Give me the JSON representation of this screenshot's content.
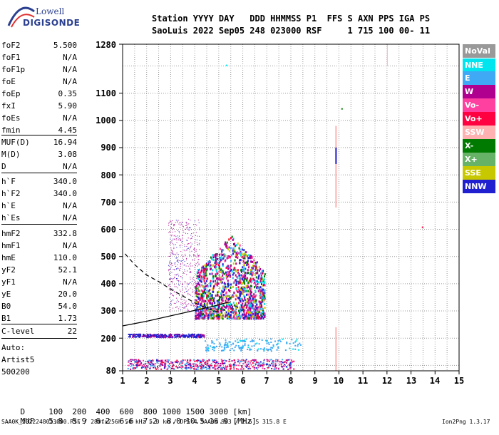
{
  "logo": {
    "line1": "Lowell",
    "line2": "DIGISONDE"
  },
  "header": {
    "line1": "Station YYYY DAY   DDD HHMMSS P1  FFS S AXN PPS IGA PS",
    "line2": "SaoLuis 2022 Sep05 248 023000 RSF     1 715 100 00- 11"
  },
  "params": [
    {
      "name": "foF2",
      "value": "5.500"
    },
    {
      "name": "foF1",
      "value": "N/A"
    },
    {
      "name": "foF1p",
      "value": "N/A"
    },
    {
      "name": "foE",
      "value": "N/A"
    },
    {
      "name": "foEp",
      "value": "0.35"
    },
    {
      "name": "fxI",
      "value": "5.90"
    },
    {
      "name": "foEs",
      "value": "N/A"
    },
    {
      "name": "fmin",
      "value": "4.45"
    },
    {
      "name": "MUF(D)",
      "value": "16.94"
    },
    {
      "name": "M(D)",
      "value": "3.08"
    },
    {
      "name": "D",
      "value": "N/A"
    },
    {
      "name": "h`F",
      "value": "340.0"
    },
    {
      "name": "h`F2",
      "value": "340.0"
    },
    {
      "name": "h`E",
      "value": "N/A"
    },
    {
      "name": "h`Es",
      "value": "N/A"
    },
    {
      "name": "hmF2",
      "value": "332.8"
    },
    {
      "name": "hmF1",
      "value": "N/A"
    },
    {
      "name": "hmE",
      "value": "110.0"
    },
    {
      "name": "yF2",
      "value": "52.1"
    },
    {
      "name": "yF1",
      "value": "N/A"
    },
    {
      "name": "yE",
      "value": "20.0"
    },
    {
      "name": "B0",
      "value": "54.0"
    },
    {
      "name": "B1",
      "value": "1.73"
    },
    {
      "name": "C-level",
      "value": "22"
    }
  ],
  "auto_info": [
    "Auto:",
    "Artist5",
    "500200"
  ],
  "legend": [
    {
      "label": "NoVal",
      "color": "#999999"
    },
    {
      "label": "NNE",
      "color": "#00e5ee"
    },
    {
      "label": "E",
      "color": "#3fa9f5"
    },
    {
      "label": "W",
      "color": "#b0008f"
    },
    {
      "label": "Vo-",
      "color": "#ff40a0"
    },
    {
      "label": "Vo+",
      "color": "#ff0040"
    },
    {
      "label": "SSW",
      "color": "#ffb0b0"
    },
    {
      "label": "X-",
      "color": "#007a00"
    },
    {
      "label": "X+",
      "color": "#66b266"
    },
    {
      "label": "SSE",
      "color": "#c8c800"
    },
    {
      "label": "NNW",
      "color": "#2020d0"
    }
  ],
  "dm_table": {
    "d_label": "D",
    "d_values": [
      "100",
      "200",
      "400",
      "600",
      "800",
      "1000",
      "1500",
      "3000"
    ],
    "d_unit": "[km]",
    "muf_label": "MUF",
    "muf_values": [
      "5.8",
      "5.9",
      "6.2",
      "6.6",
      "7.2",
      "8.0",
      "10.5",
      "16.9"
    ],
    "muf_unit": "[MHz]"
  },
  "footer": {
    "left": "SAA0K_2022248023000.RSF / 280fx256h 50 kHz 5.0 km / DPS-4 SAA0K 903 / 2.6 S 315.8 E",
    "right": "Ion2Png 1.3.17"
  },
  "chart_data": {
    "type": "scatter",
    "title": "",
    "xlabel": "",
    "ylabel": "",
    "xlim": [
      1,
      15
    ],
    "ylim": [
      80,
      1280
    ],
    "x_ticks": [
      1,
      2,
      3,
      4,
      5,
      6,
      7,
      8,
      9,
      10,
      11,
      12,
      13,
      14,
      15
    ],
    "y_ticks": [
      80,
      200,
      300,
      400,
      500,
      600,
      700,
      800,
      900,
      1000,
      1100,
      1280
    ],
    "grid": true,
    "clusters": [
      {
        "trace": "F-layer echoes",
        "x_range": [
          4.0,
          6.9
        ],
        "y_range": [
          270,
          580
        ]
      },
      {
        "trace": "diffuse echoes",
        "x_range": [
          2.9,
          4.2
        ],
        "y_range": [
          300,
          640
        ]
      },
      {
        "trace": "low-altitude echoes",
        "x_range": [
          1.2,
          4.4
        ],
        "y_range": [
          200,
          220
        ]
      },
      {
        "trace": "low-altitude echoes",
        "x_range": [
          4.4,
          8.4
        ],
        "y_range": [
          150,
          200
        ]
      },
      {
        "trace": "low-altitude echoes",
        "x_range": [
          1.2,
          8.1
        ],
        "y_range": [
          85,
          125
        ]
      }
    ],
    "profile_curve": [
      [
        1,
        245
      ],
      [
        2,
        262
      ],
      [
        3,
        282
      ],
      [
        4,
        302
      ],
      [
        4.8,
        318
      ],
      [
        5.3,
        330
      ],
      [
        5.5,
        332.8
      ]
    ],
    "dashed_curve": [
      [
        1.1,
        510
      ],
      [
        1.5,
        470
      ],
      [
        2,
        432
      ],
      [
        2.5,
        408
      ],
      [
        3,
        380
      ],
      [
        3.5,
        355
      ],
      [
        4,
        330
      ],
      [
        4.5,
        310
      ],
      [
        5,
        295
      ]
    ]
  }
}
